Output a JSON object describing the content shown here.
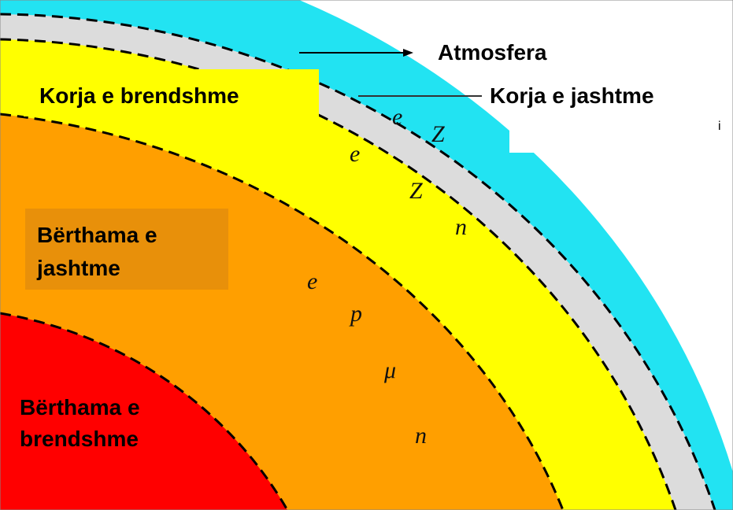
{
  "labels": {
    "atmosphere": "Atmosfera",
    "outer_crust": "Korja e jashtme",
    "inner_crust": "Korja e brendshme",
    "outer_core": [
      "Bërthama e",
      "jashtme"
    ],
    "inner_core": [
      "Bërthama e",
      "brendshme"
    ]
  },
  "particles": [
    "e",
    "Z",
    "e",
    "Z",
    "n",
    "e",
    "p",
    "μ",
    "n"
  ],
  "stray": "i"
}
